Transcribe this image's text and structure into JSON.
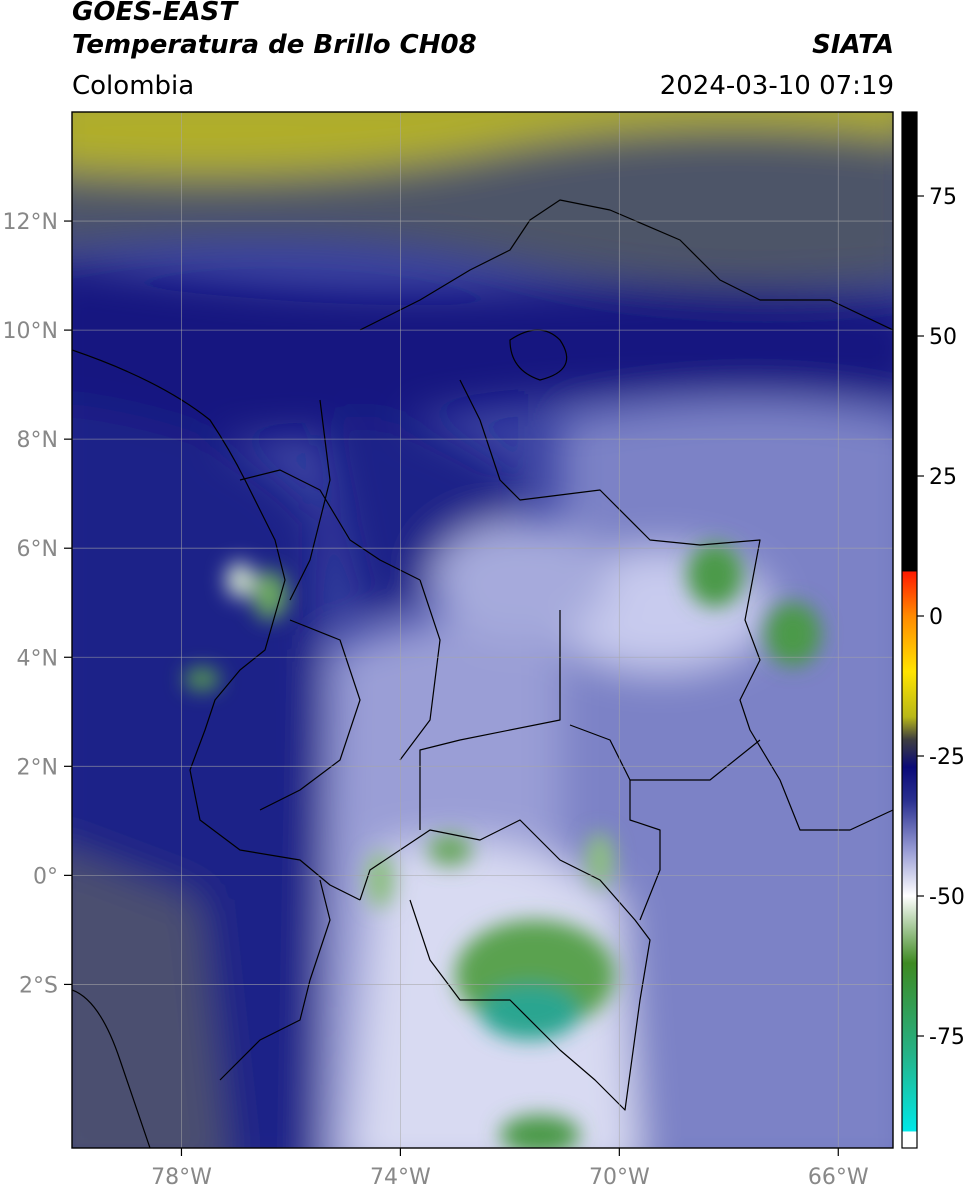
{
  "header": {
    "satellite": "GOES-EAST",
    "product": "Temperatura de Brillo CH08",
    "brand": "SIATA",
    "region": "Colombia",
    "timestamp": "2024-03-10 07:19"
  },
  "map": {
    "lon_range": [
      -80,
      -65
    ],
    "lat_range": [
      -5,
      14
    ],
    "lon_ticks": [
      {
        "value": -78,
        "label": "78°W"
      },
      {
        "value": -74,
        "label": "74°W"
      },
      {
        "value": -70,
        "label": "70°W"
      },
      {
        "value": -66,
        "label": "66°W"
      }
    ],
    "lat_ticks": [
      {
        "value": 12,
        "label": "12°N"
      },
      {
        "value": 10,
        "label": "10°N"
      },
      {
        "value": 8,
        "label": "8°N"
      },
      {
        "value": 6,
        "label": "6°N"
      },
      {
        "value": 4,
        "label": "4°N"
      },
      {
        "value": 2,
        "label": "2°N"
      },
      {
        "value": 0,
        "label": "0°"
      },
      {
        "value": -2,
        "label": "2°S"
      }
    ]
  },
  "colorbar": {
    "range": [
      -95,
      90
    ],
    "ticks": [
      {
        "value": 75,
        "label": "75"
      },
      {
        "value": 50,
        "label": "50"
      },
      {
        "value": 25,
        "label": "25"
      },
      {
        "value": 0,
        "label": "0"
      },
      {
        "value": -25,
        "label": "-25"
      },
      {
        "value": -50,
        "label": "-50"
      },
      {
        "value": -75,
        "label": "-75"
      }
    ],
    "stops": [
      {
        "value": 90,
        "color": "#000000"
      },
      {
        "value": 8,
        "color": "#000000"
      },
      {
        "value": 7.9,
        "color": "#ff1a00"
      },
      {
        "value": 0,
        "color": "#ff8a00"
      },
      {
        "value": -10,
        "color": "#ffe400"
      },
      {
        "value": -18,
        "color": "#b8b818"
      },
      {
        "value": -22,
        "color": "#3f3f3f"
      },
      {
        "value": -27,
        "color": "#0a0a78"
      },
      {
        "value": -33,
        "color": "#2a3090"
      },
      {
        "value": -42,
        "color": "#9a9ed6"
      },
      {
        "value": -50,
        "color": "#ffffff"
      },
      {
        "value": -62,
        "color": "#3e8a22"
      },
      {
        "value": -78,
        "color": "#26b286"
      },
      {
        "value": -92,
        "color": "#00e8e8"
      },
      {
        "value": -92.1,
        "color": "#ffffff"
      },
      {
        "value": -95,
        "color": "#ffffff"
      }
    ]
  },
  "colors": {
    "dry_north": "#b6b425",
    "dark_band": "#4e5468",
    "navy": "#0e147e",
    "mid_blue": "#3840a0",
    "light_blue": "#7d82c6",
    "pale": "#c6c9ec",
    "green": "#4f9a4c",
    "teal": "#2aa590"
  }
}
